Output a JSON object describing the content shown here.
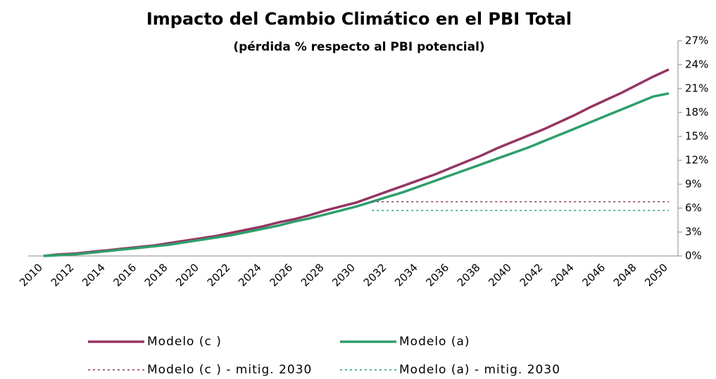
{
  "chart_data": {
    "type": "line",
    "title": "Impacto del Cambio Climático en el PBI Total",
    "subtitle": "(pérdida % respecto al PBI potencial)",
    "categories": [
      "2010",
      null,
      "2012",
      null,
      "2014",
      null,
      "2016",
      null,
      "2018",
      null,
      "2020",
      null,
      "2022",
      null,
      "2024",
      null,
      "2026",
      null,
      "2028",
      null,
      "2030",
      null,
      "2032",
      null,
      "2034",
      null,
      "2036",
      null,
      "2038",
      null,
      "2040",
      null,
      "2042",
      null,
      "2044",
      null,
      "2046",
      null,
      "2048",
      null,
      "2050"
    ],
    "series": [
      {
        "name": "Modelo (c )",
        "color": "#953563",
        "dashed": false,
        "values": [
          0,
          0.2,
          0.3,
          0.5,
          0.7,
          0.9,
          1.1,
          1.3,
          1.6,
          1.9,
          2.2,
          2.5,
          2.9,
          3.3,
          3.7,
          4.2,
          4.6,
          5.1,
          5.7,
          6.2,
          6.7,
          7.4,
          8.1,
          8.8,
          9.5,
          10.2,
          11.0,
          11.8,
          12.6,
          13.5,
          14.3,
          15.1,
          15.9,
          16.8,
          17.7,
          18.7,
          19.6,
          20.5,
          21.5,
          22.5,
          23.4
        ]
      },
      {
        "name": "Modelo (a)",
        "color": "#2e9e6b",
        "dashed": false,
        "values": [
          0,
          0.1,
          0.2,
          0.4,
          0.6,
          0.8,
          1.0,
          1.2,
          1.4,
          1.7,
          2.0,
          2.3,
          2.6,
          3.0,
          3.4,
          3.8,
          4.3,
          4.7,
          5.2,
          5.7,
          6.2,
          6.8,
          7.4,
          8.0,
          8.7,
          9.4,
          10.1,
          10.8,
          11.5,
          12.2,
          12.9,
          13.6,
          14.4,
          15.2,
          16.0,
          16.8,
          17.6,
          18.4,
          19.2,
          20.0,
          20.4
        ]
      },
      {
        "name": "Modelo (c ) - mitig. 2030",
        "color": "#953563",
        "dashed": true,
        "values": [
          null,
          null,
          null,
          null,
          null,
          null,
          null,
          null,
          null,
          null,
          null,
          null,
          null,
          null,
          null,
          null,
          null,
          null,
          null,
          null,
          null,
          6.8,
          6.8,
          6.8,
          6.8,
          6.8,
          6.8,
          6.8,
          6.8,
          6.8,
          6.8,
          6.8,
          6.8,
          6.8,
          6.8,
          6.8,
          6.8,
          6.8,
          6.8,
          6.8,
          6.8
        ]
      },
      {
        "name": "Modelo (a) - mitig. 2030",
        "color": "#2e9e6b",
        "dashed": true,
        "values": [
          null,
          null,
          null,
          null,
          null,
          null,
          null,
          null,
          null,
          null,
          null,
          null,
          null,
          null,
          null,
          null,
          null,
          null,
          null,
          null,
          null,
          5.7,
          5.7,
          5.7,
          5.7,
          5.7,
          5.7,
          5.7,
          5.7,
          5.7,
          5.7,
          5.7,
          5.7,
          5.7,
          5.7,
          5.7,
          5.7,
          5.7,
          5.7,
          5.7,
          5.7
        ]
      }
    ],
    "ylim": [
      0,
      27
    ],
    "yticks": [
      {
        "value": 0,
        "label": "0%"
      },
      {
        "value": 3,
        "label": "3%"
      },
      {
        "value": 6,
        "label": "6%"
      },
      {
        "value": 9,
        "label": "9%"
      },
      {
        "value": 12,
        "label": "12%"
      },
      {
        "value": 15,
        "label": "15%"
      },
      {
        "value": 18,
        "label": "18%"
      },
      {
        "value": 21,
        "label": "21%"
      },
      {
        "value": 24,
        "label": "24%"
      },
      {
        "value": 27,
        "label": "27%"
      }
    ],
    "y_axis_side": "right",
    "grid": false
  }
}
